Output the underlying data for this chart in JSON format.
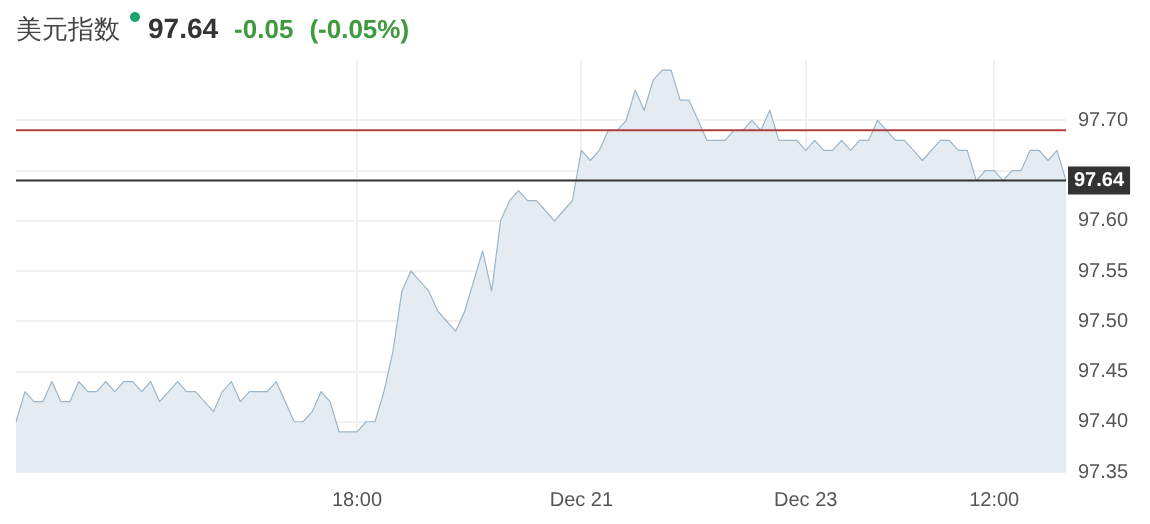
{
  "chart_data": {
    "type": "area",
    "title": "美元指数",
    "annotations": [
      "97.64",
      "-0.05",
      "(-0.05%)"
    ],
    "categories": [
      null,
      null,
      null,
      null,
      null,
      null,
      null,
      null,
      null,
      null,
      null,
      null,
      null,
      null,
      null,
      null,
      null,
      null,
      null,
      null,
      null,
      null,
      null,
      null,
      null,
      null,
      null,
      null,
      null,
      null,
      null,
      null,
      null,
      null,
      null,
      null,
      null,
      null,
      "18:00",
      null,
      null,
      null,
      null,
      null,
      null,
      null,
      null,
      null,
      null,
      null,
      null,
      null,
      null,
      null,
      null,
      null,
      null,
      null,
      null,
      null,
      null,
      null,
      null,
      "Dec 21",
      null,
      null,
      null,
      null,
      null,
      null,
      null,
      null,
      null,
      null,
      null,
      null,
      null,
      null,
      null,
      null,
      null,
      null,
      null,
      null,
      null,
      null,
      null,
      null,
      "Dec 23",
      null,
      null,
      null,
      null,
      null,
      null,
      null,
      null,
      null,
      null,
      null,
      null,
      null,
      null,
      null,
      null,
      null,
      null,
      null,
      null,
      "12:00",
      null,
      null,
      null,
      null,
      null,
      null,
      null,
      null
    ],
    "series": [
      {
        "color": "#9bb5c9",
        "values": [
          97.4,
          97.43,
          97.42,
          97.42,
          97.44,
          97.42,
          97.42,
          97.44,
          97.43,
          97.43,
          97.44,
          97.43,
          97.44,
          97.44,
          97.43,
          97.44,
          97.42,
          97.43,
          97.44,
          97.43,
          97.43,
          97.42,
          97.41,
          97.43,
          97.44,
          97.42,
          97.43,
          97.43,
          97.43,
          97.44,
          97.42,
          97.4,
          97.4,
          97.41,
          97.43,
          97.42,
          97.39,
          97.39,
          97.39,
          97.4,
          97.4,
          97.43,
          97.47,
          97.53,
          97.55,
          97.54,
          97.53,
          97.51,
          97.5,
          97.49,
          97.51,
          97.54,
          97.57,
          97.53,
          97.6,
          97.62,
          97.63,
          97.62,
          97.62,
          97.61,
          97.6,
          97.61,
          97.62,
          97.67,
          97.66,
          97.67,
          97.69,
          97.69,
          97.7,
          97.73,
          97.71,
          97.74,
          97.75,
          97.75,
          97.72,
          97.72,
          97.7,
          97.68,
          97.68,
          97.68,
          97.69,
          97.69,
          97.7,
          97.69,
          97.71,
          97.68,
          97.68,
          97.68,
          97.67,
          97.68,
          97.67,
          97.67,
          97.68,
          97.67,
          97.68,
          97.68,
          97.7,
          97.69,
          97.68,
          97.68,
          97.67,
          97.66,
          97.67,
          97.68,
          97.68,
          97.67,
          97.67,
          97.64,
          97.65,
          97.65,
          97.64,
          97.65,
          97.65,
          97.67,
          97.67,
          97.66,
          97.67,
          97.64
        ]
      }
    ],
    "ylim": [
      97.35,
      97.76
    ],
    "yticks": [
      97.35,
      {
        "value": 97.4,
        "label": "97.40"
      },
      97.45,
      {
        "value": 97.5,
        "label": "97.50"
      },
      97.55,
      {
        "value": 97.6,
        "label": "97.60"
      },
      {
        "value": 97.65,
        "label": null
      },
      {
        "value": 97.7,
        "label": "97.70"
      }
    ],
    "ref_lines": [
      {
        "axis": "y",
        "value": 97.69,
        "color": "#b04040"
      },
      {
        "axis": "y",
        "value": 97.64,
        "label": "97.64",
        "color": "#333333"
      }
    ],
    "grid": true,
    "legend": false,
    "marker": "none"
  }
}
